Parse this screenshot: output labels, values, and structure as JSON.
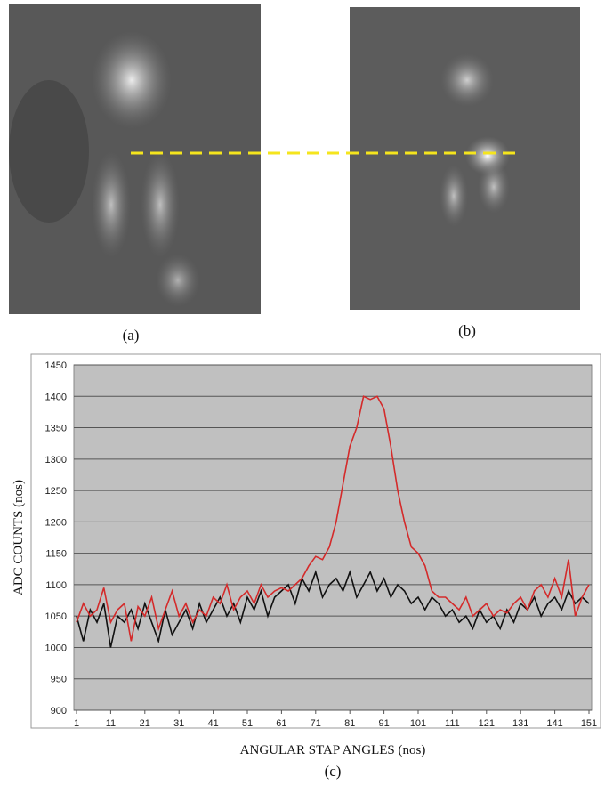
{
  "panels": [
    "(a)",
    "(b)"
  ],
  "chart_data": {
    "type": "line",
    "caption": "(c)",
    "x_label": "ANGULAR STAP ANGLES (nos)",
    "y_label": "ADC COUNTS (nos)",
    "xlim": [
      1,
      151
    ],
    "xticks": [
      1,
      11,
      21,
      31,
      41,
      51,
      61,
      71,
      81,
      91,
      101,
      111,
      121,
      131,
      141,
      151
    ],
    "ylim": [
      900,
      1450
    ],
    "yticks": [
      900,
      950,
      1000,
      1050,
      1100,
      1150,
      1200,
      1250,
      1300,
      1350,
      1400,
      1450
    ],
    "grid": true,
    "x": [
      1,
      3,
      5,
      7,
      9,
      11,
      13,
      15,
      17,
      19,
      21,
      23,
      25,
      27,
      29,
      31,
      33,
      35,
      37,
      39,
      41,
      43,
      45,
      47,
      49,
      51,
      53,
      55,
      57,
      59,
      61,
      63,
      65,
      67,
      69,
      71,
      73,
      75,
      77,
      79,
      81,
      83,
      85,
      87,
      89,
      91,
      93,
      95,
      97,
      99,
      101,
      103,
      105,
      107,
      109,
      111,
      113,
      115,
      117,
      119,
      121,
      123,
      125,
      127,
      129,
      131,
      133,
      135,
      137,
      139,
      141,
      143,
      145,
      147,
      149,
      151
    ],
    "series": [
      {
        "color": "#111111",
        "values": [
          1050,
          1010,
          1060,
          1040,
          1070,
          1000,
          1050,
          1040,
          1060,
          1030,
          1070,
          1040,
          1010,
          1060,
          1020,
          1040,
          1060,
          1030,
          1070,
          1040,
          1060,
          1080,
          1050,
          1070,
          1040,
          1080,
          1060,
          1090,
          1050,
          1080,
          1090,
          1100,
          1070,
          1110,
          1090,
          1120,
          1080,
          1100,
          1110,
          1090,
          1120,
          1080,
          1100,
          1120,
          1090,
          1110,
          1080,
          1100,
          1090,
          1070,
          1080,
          1060,
          1080,
          1070,
          1050,
          1060,
          1040,
          1050,
          1030,
          1060,
          1040,
          1050,
          1030,
          1060,
          1040,
          1070,
          1060,
          1080,
          1050,
          1070,
          1080,
          1060,
          1090,
          1070,
          1080,
          1070
        ]
      },
      {
        "color": "#d42a2a",
        "values": [
          1040,
          1070,
          1050,
          1060,
          1095,
          1040,
          1060,
          1070,
          1010,
          1065,
          1050,
          1080,
          1030,
          1060,
          1090,
          1050,
          1070,
          1040,
          1060,
          1050,
          1080,
          1070,
          1100,
          1060,
          1080,
          1090,
          1070,
          1100,
          1080,
          1090,
          1095,
          1090,
          1100,
          1110,
          1130,
          1145,
          1140,
          1160,
          1200,
          1260,
          1320,
          1350,
          1400,
          1395,
          1400,
          1380,
          1320,
          1250,
          1200,
          1160,
          1150,
          1130,
          1090,
          1080,
          1080,
          1070,
          1060,
          1080,
          1050,
          1060,
          1070,
          1050,
          1060,
          1055,
          1070,
          1080,
          1060,
          1090,
          1100,
          1080,
          1110,
          1080,
          1140,
          1050,
          1080,
          1100
        ]
      }
    ]
  }
}
